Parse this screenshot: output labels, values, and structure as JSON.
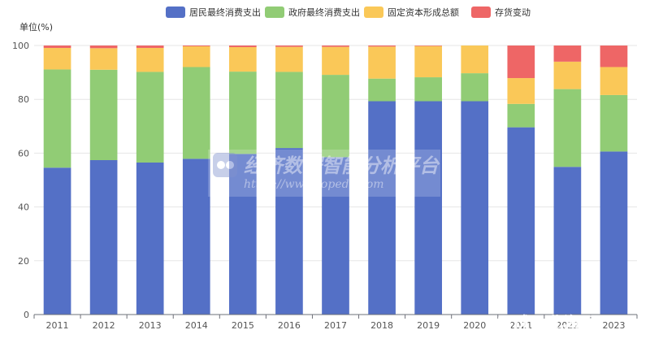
{
  "chart_data": {
    "type": "bar",
    "stacked": true,
    "ylabel": "单位(%)",
    "ylim": [
      0,
      100
    ],
    "yticks": [
      0,
      20,
      40,
      60,
      80,
      100
    ],
    "categories": [
      "2011",
      "2012",
      "2013",
      "2014",
      "2015",
      "2016",
      "2017",
      "2018",
      "2019",
      "2020",
      "2021",
      "2022",
      "2023"
    ],
    "legend_position": "top-center",
    "grid": true,
    "series": [
      {
        "name": "居民最终消费支出",
        "color": "#5470c6",
        "values": [
          54.6,
          57.4,
          56.5,
          57.9,
          59.7,
          61.9,
          58.5,
          79.3,
          79.3,
          79.3,
          69.6,
          54.9,
          60.6
        ]
      },
      {
        "name": "政府最终消费支出",
        "color": "#91cc75",
        "values": [
          36.5,
          33.6,
          33.7,
          34.1,
          30.6,
          28.3,
          30.6,
          8.4,
          8.9,
          10.4,
          8.7,
          28.9,
          21.0
        ]
      },
      {
        "name": "固定资本形成总额",
        "color": "#fac858",
        "values": [
          8.0,
          8.0,
          8.9,
          7.7,
          9.1,
          9.3,
          10.4,
          11.9,
          11.6,
          10.3,
          9.6,
          10.2,
          10.4
        ]
      },
      {
        "name": "存货变动",
        "color": "#ee6666",
        "values": [
          0.9,
          1.0,
          0.9,
          0.3,
          0.6,
          0.5,
          0.5,
          0.4,
          0.2,
          0.0,
          12.1,
          6.0,
          8.0
        ]
      }
    ]
  },
  "watermark": {
    "title": "经济数据智能分析平台",
    "url": "https://www.topedb.com",
    "corner": "雪球 · 北海居"
  }
}
